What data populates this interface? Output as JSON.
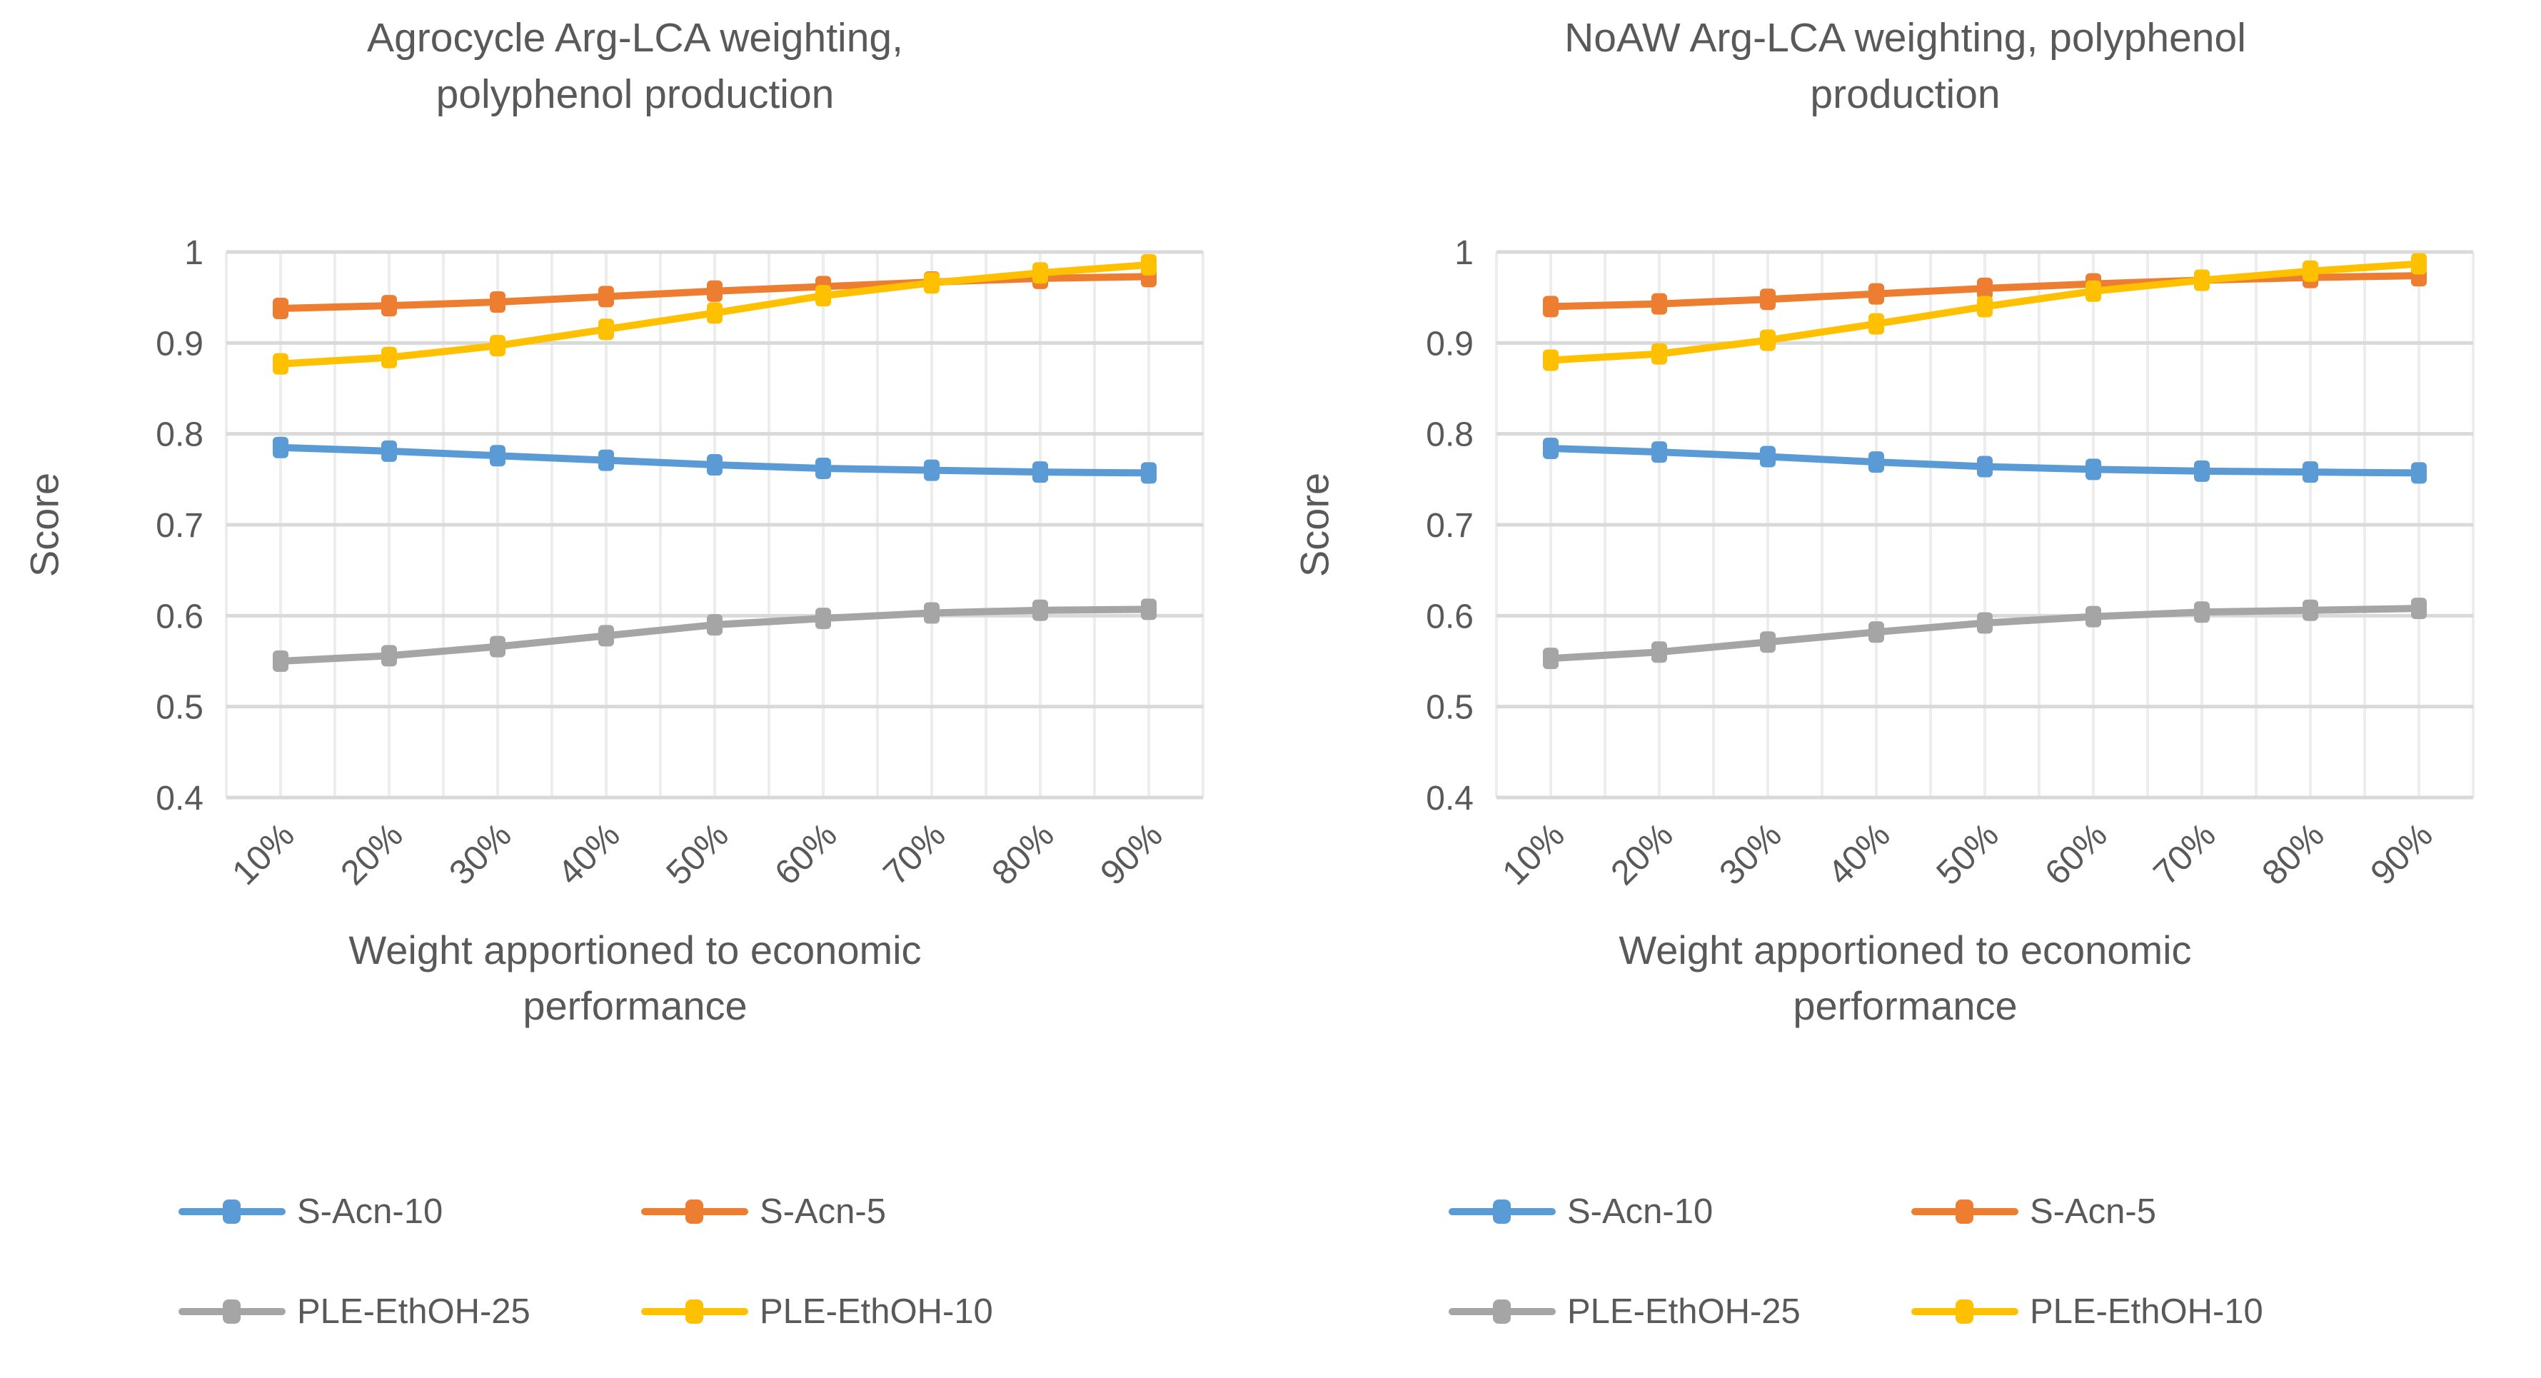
{
  "style": {
    "background": "#ffffff",
    "text_color": "#595959",
    "grid_major_color": "#d9d9d9",
    "grid_minor_color": "#ededed"
  },
  "chart_data": [
    {
      "type": "line",
      "title": "Agrocycle Arg-LCA weighting, polyphenol production",
      "title_lines": [
        "Agrocycle Arg-LCA weighting,",
        "polyphenol production"
      ],
      "ylabel": "Score",
      "xlabel": "Weight apportioned to economic performance",
      "xlabel_lines": [
        "Weight apportioned to economic",
        "performance"
      ],
      "categories": [
        "10%",
        "20%",
        "30%",
        "40%",
        "50%",
        "60%",
        "70%",
        "80%",
        "90%"
      ],
      "ylim": [
        0.4,
        1.0
      ],
      "ytick_labels": [
        "1",
        "0.9",
        "0.8",
        "0.7",
        "0.6",
        "0.5",
        "0.4"
      ],
      "grid": "on",
      "legend_position": "bottom",
      "series": [
        {
          "name": "S-Acn-10",
          "color": "#5B9BD5",
          "values": [
            0.785,
            0.781,
            0.776,
            0.771,
            0.766,
            0.762,
            0.76,
            0.758,
            0.757
          ]
        },
        {
          "name": "S-Acn-5",
          "color": "#ED7D31",
          "values": [
            0.938,
            0.941,
            0.945,
            0.951,
            0.957,
            0.962,
            0.967,
            0.971,
            0.973
          ]
        },
        {
          "name": "PLE-EthOH-25",
          "color": "#A5A5A5",
          "values": [
            0.55,
            0.556,
            0.566,
            0.578,
            0.59,
            0.597,
            0.603,
            0.606,
            0.607
          ]
        },
        {
          "name": "PLE-EthOH-10",
          "color": "#FFC000",
          "values": [
            0.877,
            0.884,
            0.897,
            0.915,
            0.933,
            0.952,
            0.966,
            0.977,
            0.986
          ]
        }
      ]
    },
    {
      "type": "line",
      "title": "NoAW Arg-LCA weighting, polyphenol production",
      "title_lines": [
        "NoAW Arg-LCA weighting, polyphenol",
        "production"
      ],
      "ylabel": "Score",
      "xlabel": "Weight apportioned to economic performance",
      "xlabel_lines": [
        "Weight apportioned to economic",
        "performance"
      ],
      "categories": [
        "10%",
        "20%",
        "30%",
        "40%",
        "50%",
        "60%",
        "70%",
        "80%",
        "90%"
      ],
      "ylim": [
        0.4,
        1.0
      ],
      "ytick_labels": [
        "1",
        "0.9",
        "0.8",
        "0.7",
        "0.6",
        "0.5",
        "0.4"
      ],
      "grid": "on",
      "legend_position": "bottom",
      "series": [
        {
          "name": "S-Acn-10",
          "color": "#5B9BD5",
          "values": [
            0.784,
            0.78,
            0.775,
            0.769,
            0.764,
            0.761,
            0.759,
            0.758,
            0.757
          ]
        },
        {
          "name": "S-Acn-5",
          "color": "#ED7D31",
          "values": [
            0.94,
            0.943,
            0.948,
            0.954,
            0.96,
            0.965,
            0.969,
            0.972,
            0.974
          ]
        },
        {
          "name": "PLE-EthOH-25",
          "color": "#A5A5A5",
          "values": [
            0.553,
            0.56,
            0.571,
            0.582,
            0.592,
            0.599,
            0.604,
            0.606,
            0.608
          ]
        },
        {
          "name": "PLE-EthOH-10",
          "color": "#FFC000",
          "values": [
            0.881,
            0.888,
            0.903,
            0.921,
            0.94,
            0.957,
            0.969,
            0.979,
            0.987
          ]
        }
      ]
    }
  ]
}
